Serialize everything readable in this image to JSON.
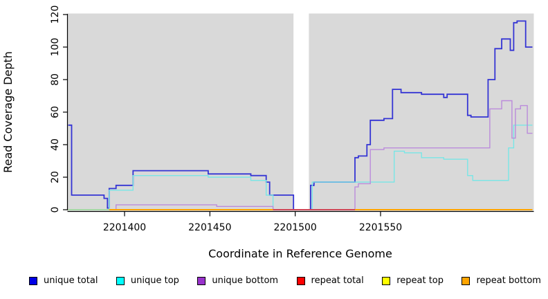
{
  "chart_data": {
    "type": "line",
    "subtype": "step",
    "title": "",
    "xlabel": "Coordinate in Reference Genome",
    "ylabel": "Read Coverage Depth",
    "x_domain": [
      2201367,
      2201639
    ],
    "ylim": [
      0,
      120
    ],
    "x_ticks": [
      2201400,
      2201450,
      2201500,
      2201550
    ],
    "y_ticks": [
      0,
      20,
      40,
      60,
      80,
      100,
      120
    ],
    "grid": false,
    "panel_bg": "#d9d9d9",
    "gap_region": [
      2201499,
      2201508
    ],
    "legend_position": "bottom",
    "series": [
      {
        "name": "unique total",
        "color": "#3434d4",
        "width": 1.8,
        "points": [
          [
            2201367,
            52
          ],
          [
            2201369,
            9
          ],
          [
            2201388,
            7
          ],
          [
            2201390,
            1
          ],
          [
            2201391,
            13
          ],
          [
            2201395,
            15
          ],
          [
            2201405,
            24
          ],
          [
            2201449,
            22
          ],
          [
            2201474,
            21
          ],
          [
            2201483,
            17
          ],
          [
            2201485,
            9
          ],
          [
            2201499,
            0
          ],
          [
            2201509,
            15
          ],
          [
            2201511,
            17
          ],
          [
            2201535,
            32
          ],
          [
            2201537,
            33
          ],
          [
            2201542,
            40
          ],
          [
            2201544,
            55
          ],
          [
            2201552,
            56
          ],
          [
            2201557,
            74
          ],
          [
            2201562,
            72
          ],
          [
            2201574,
            71
          ],
          [
            2201587,
            69
          ],
          [
            2201589,
            71
          ],
          [
            2201601,
            58
          ],
          [
            2201603,
            57
          ],
          [
            2201613,
            80
          ],
          [
            2201617,
            99
          ],
          [
            2201621,
            105
          ],
          [
            2201626,
            98
          ],
          [
            2201628,
            115
          ],
          [
            2201630,
            116
          ],
          [
            2201635,
            100
          ],
          [
            2201639,
            100
          ]
        ]
      },
      {
        "name": "unique top",
        "color": "#78e6e6",
        "width": 1.4,
        "points": [
          [
            2201367,
            0
          ],
          [
            2201391,
            12
          ],
          [
            2201405,
            21
          ],
          [
            2201449,
            20
          ],
          [
            2201474,
            18
          ],
          [
            2201483,
            9
          ],
          [
            2201487,
            0
          ],
          [
            2201510,
            17
          ],
          [
            2201558,
            36
          ],
          [
            2201564,
            35
          ],
          [
            2201574,
            32
          ],
          [
            2201587,
            31
          ],
          [
            2201601,
            21
          ],
          [
            2201604,
            18
          ],
          [
            2201625,
            38
          ],
          [
            2201628,
            52
          ],
          [
            2201639,
            52
          ]
        ]
      },
      {
        "name": "unique bottom",
        "color": "#bb8bdb",
        "width": 1.4,
        "points": [
          [
            2201367,
            0
          ],
          [
            2201395,
            3
          ],
          [
            2201454,
            2
          ],
          [
            2201487,
            0
          ],
          [
            2201535,
            14
          ],
          [
            2201537,
            16
          ],
          [
            2201544,
            37
          ],
          [
            2201552,
            38
          ],
          [
            2201614,
            62
          ],
          [
            2201621,
            67
          ],
          [
            2201627,
            44
          ],
          [
            2201629,
            62
          ],
          [
            2201632,
            64
          ],
          [
            2201636,
            47
          ],
          [
            2201639,
            47
          ]
        ]
      },
      {
        "name": "repeat total",
        "color": "#d04858",
        "width": 1.5,
        "points": [
          [
            2201367,
            0
          ],
          [
            2201639,
            0
          ]
        ]
      },
      {
        "name": "repeat top",
        "color": "#ffff00",
        "width": 1.5,
        "points": [
          [
            2201367,
            0
          ],
          [
            2201639,
            0
          ]
        ]
      },
      {
        "name": "repeat bottom",
        "color": "#ffa500",
        "width": 1.5,
        "points": [
          [
            2201367,
            0
          ],
          [
            2201639,
            0
          ]
        ]
      }
    ],
    "baseline_segments": [
      {
        "color": "#a6d9a6",
        "from": 2201367,
        "to": 2201391
      },
      {
        "color": "#ffa500",
        "from": 2201391,
        "to": 2201487
      },
      {
        "color": "#d04858",
        "from": 2201487,
        "to": 2201535
      },
      {
        "color": "#ffa500",
        "from": 2201535,
        "to": 2201639
      }
    ]
  },
  "legend": {
    "items": [
      {
        "label": "unique total",
        "color": "#0000e6"
      },
      {
        "label": "unique top",
        "color": "#00ffff"
      },
      {
        "label": "unique bottom",
        "color": "#9932cc"
      },
      {
        "label": "repeat total",
        "color": "#ff0000"
      },
      {
        "label": "repeat top",
        "color": "#ffff00"
      },
      {
        "label": "repeat bottom",
        "color": "#ffa500"
      }
    ]
  }
}
